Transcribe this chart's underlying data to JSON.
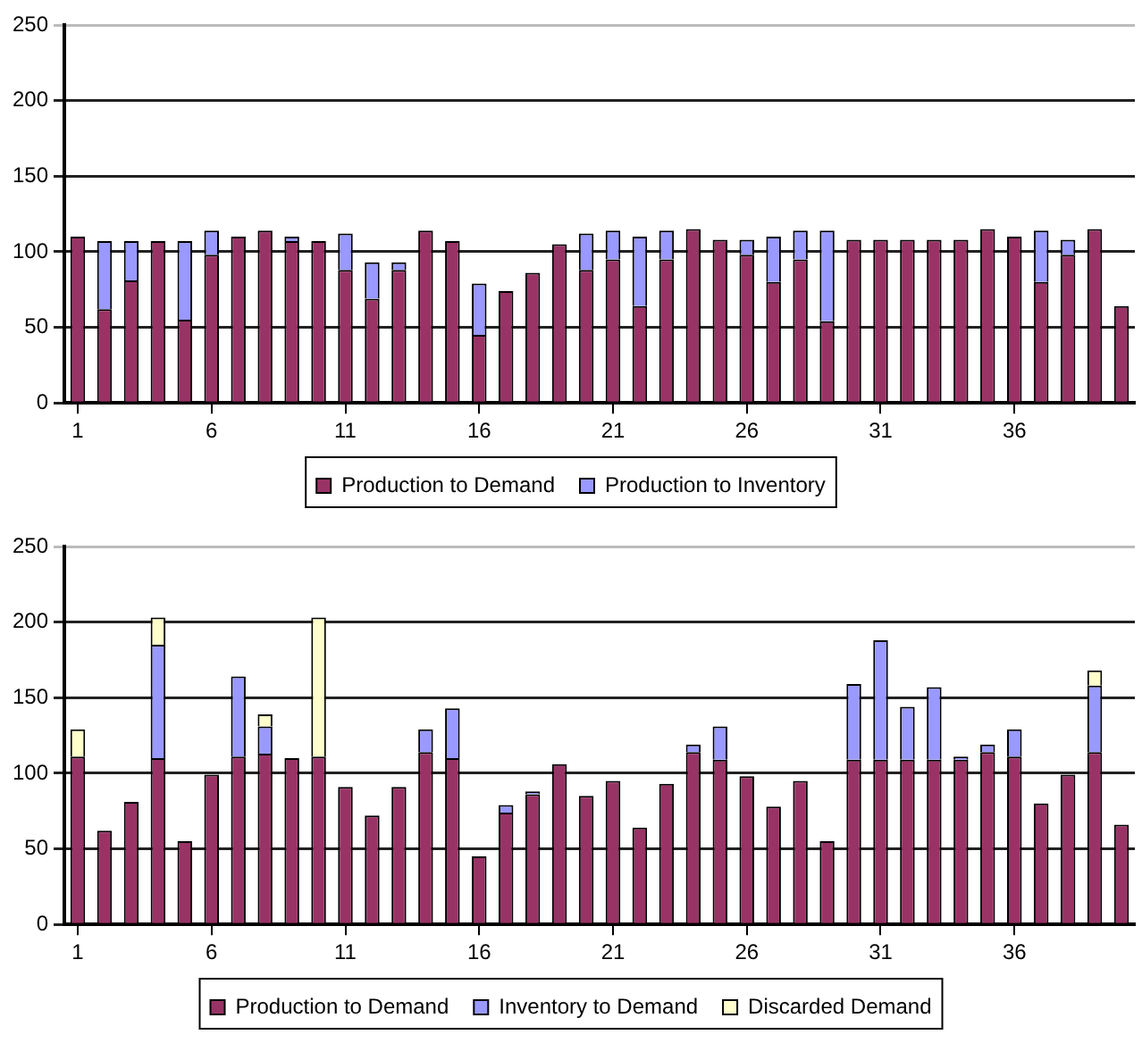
{
  "chart_data": [
    {
      "type": "bar",
      "stacked": true,
      "x": [
        1,
        2,
        3,
        4,
        5,
        6,
        7,
        8,
        9,
        10,
        11,
        12,
        13,
        14,
        15,
        16,
        17,
        18,
        19,
        20,
        21,
        22,
        23,
        24,
        25,
        26,
        27,
        28,
        29,
        30,
        31,
        32,
        33,
        34,
        35,
        36,
        37,
        38,
        39,
        40
      ],
      "xlim": [
        0.5,
        40.5
      ],
      "xticks": [
        1,
        6,
        11,
        16,
        21,
        26,
        31,
        36
      ],
      "series": [
        {
          "name": "Production to Demand",
          "color": "#993366",
          "values": [
            110,
            62,
            81,
            107,
            55,
            98,
            110,
            114,
            107,
            107,
            88,
            69,
            88,
            114,
            107,
            45,
            74,
            86,
            105,
            88,
            95,
            64,
            95,
            115,
            108,
            98,
            80,
            95,
            54,
            108,
            108,
            108,
            108,
            108,
            115,
            110,
            80,
            98,
            115,
            64
          ]
        },
        {
          "name": "Production to Inventory",
          "color": "#9999ff",
          "values": [
            0,
            45,
            26,
            0,
            52,
            16,
            0,
            0,
            3,
            0,
            24,
            24,
            5,
            0,
            0,
            34,
            0,
            0,
            0,
            24,
            19,
            46,
            19,
            0,
            0,
            10,
            30,
            19,
            60,
            0,
            0,
            0,
            0,
            0,
            0,
            0,
            34,
            10,
            0,
            0
          ]
        }
      ],
      "ylim": [
        0,
        250
      ],
      "yticks": [
        0,
        50,
        100,
        150,
        200,
        250
      ],
      "grid": "y",
      "legend": "bottom"
    },
    {
      "type": "bar",
      "stacked": true,
      "x": [
        1,
        2,
        3,
        4,
        5,
        6,
        7,
        8,
        9,
        10,
        11,
        12,
        13,
        14,
        15,
        16,
        17,
        18,
        19,
        20,
        21,
        22,
        23,
        24,
        25,
        26,
        27,
        28,
        29,
        30,
        31,
        32,
        33,
        34,
        35,
        36,
        37,
        38,
        39,
        40
      ],
      "xlim": [
        0.5,
        40.5
      ],
      "xticks": [
        1,
        6,
        11,
        16,
        21,
        26,
        31,
        36
      ],
      "series": [
        {
          "name": "Production to Demand",
          "color": "#993366",
          "values": [
            111,
            62,
            81,
            110,
            55,
            99,
            111,
            113,
            110,
            111,
            91,
            72,
            91,
            114,
            110,
            45,
            74,
            86,
            106,
            85,
            95,
            64,
            93,
            114,
            109,
            98,
            78,
            95,
            55,
            109,
            109,
            109,
            109,
            109,
            114,
            111,
            80,
            99,
            114,
            66
          ]
        },
        {
          "name": "Inventory to Demand",
          "color": "#9999ff",
          "values": [
            0,
            0,
            0,
            75,
            0,
            0,
            53,
            18,
            0,
            0,
            0,
            0,
            0,
            15,
            33,
            0,
            5,
            2,
            0,
            0,
            0,
            0,
            0,
            5,
            22,
            0,
            0,
            0,
            0,
            50,
            79,
            35,
            48,
            2,
            5,
            18,
            0,
            0,
            44,
            0
          ]
        },
        {
          "name": "Discarded Demand",
          "color": "#ffffcc",
          "values": [
            18,
            0,
            0,
            18,
            0,
            0,
            0,
            8,
            0,
            92,
            0,
            0,
            0,
            0,
            0,
            0,
            0,
            0,
            0,
            0,
            0,
            0,
            0,
            0,
            0,
            0,
            0,
            0,
            0,
            0,
            0,
            0,
            0,
            0,
            0,
            0,
            0,
            0,
            10,
            0
          ]
        }
      ],
      "ylim": [
        0,
        250
      ],
      "yticks": [
        0,
        50,
        100,
        150,
        200,
        250
      ],
      "grid": "y",
      "legend": "bottom"
    }
  ]
}
